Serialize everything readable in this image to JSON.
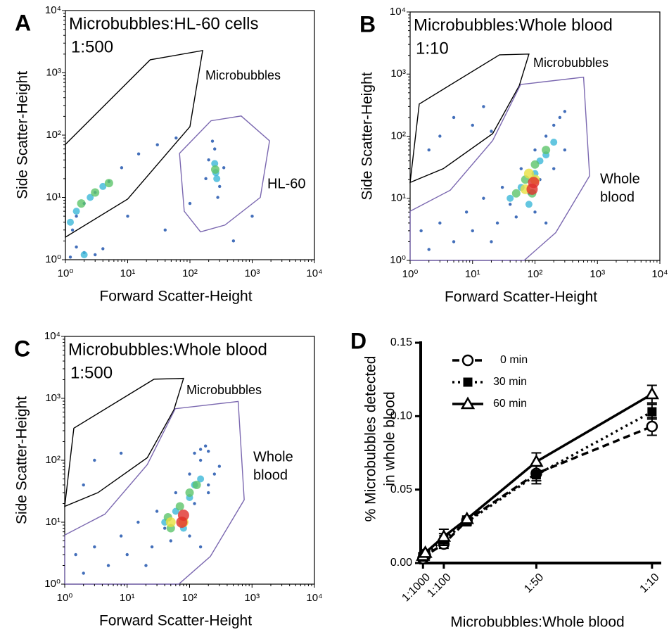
{
  "chart_data": [
    {
      "type": "density",
      "panel": "A",
      "title": "Microbubbles:HL-60 cells",
      "subtitle": "1:500",
      "xlabel": "Forward Scatter-Height",
      "ylabel": "Side Scatter-Height",
      "xscale": "log",
      "yscale": "log",
      "xlim": [
        1,
        10000
      ],
      "ylim": [
        1,
        10000
      ],
      "xticks": [
        {
          "value": 1,
          "label": "10⁰"
        },
        {
          "value": 10,
          "label": "10¹"
        },
        {
          "value": 100,
          "label": "10²"
        },
        {
          "value": 1000,
          "label": "10³"
        },
        {
          "value": 10000,
          "label": "10⁴"
        }
      ],
      "yticks": [
        {
          "value": 1,
          "label": "10⁰"
        },
        {
          "value": 10,
          "label": "10¹"
        },
        {
          "value": 100,
          "label": "10²"
        },
        {
          "value": 1000,
          "label": "10³"
        },
        {
          "value": 10000,
          "label": "10⁴"
        }
      ],
      "gates": [
        {
          "label": [
            "Microbubbles"
          ],
          "color": "#000000",
          "x": [
            1,
            23,
            160,
            100,
            10,
            1
          ],
          "y": [
            71,
            1620,
            2280,
            137,
            9.4,
            2.3
          ]
        },
        {
          "label": [
            "HL-60"
          ],
          "color": "#7b68b0",
          "x": [
            68,
            218,
            665,
            1900,
            1350,
            365,
            148,
            81
          ],
          "y": [
            51,
            170,
            203,
            81,
            10,
            3.6,
            2.8,
            6
          ]
        }
      ],
      "series": [
        {
          "color": "#2f5fb3",
          "x": [
            200,
            300,
            250,
            350,
            180,
            280,
            230,
            1.3,
            1.5,
            2,
            3,
            5,
            8,
            15,
            30,
            60,
            1.2,
            2,
            3,
            4,
            1.5,
            10,
            40,
            100,
            500,
            1000
          ],
          "y": [
            40,
            15,
            60,
            30,
            20,
            10,
            80,
            3,
            5,
            8,
            12,
            18,
            30,
            50,
            70,
            90,
            1.1,
            1.3,
            1.2,
            1.5,
            1.6,
            5,
            3,
            8,
            2,
            5
          ]
        },
        {
          "color": "#3cb8d8",
          "x": [
            260,
            250,
            270,
            1.5,
            2.5,
            4,
            1.2,
            2
          ],
          "y": [
            25,
            35,
            20,
            6,
            10,
            15,
            4,
            1.2
          ]
        },
        {
          "color": "#5cc46a",
          "x": [
            255,
            3,
            5,
            1.8
          ],
          "y": [
            28,
            12,
            17,
            8
          ]
        }
      ]
    },
    {
      "type": "density",
      "panel": "B",
      "title": "Microbubbles:Whole blood",
      "subtitle": "1:10",
      "xlabel": "Forward Scatter-Height",
      "ylabel": "Side Scatter-Height",
      "xscale": "log",
      "yscale": "log",
      "xlim": [
        1,
        10000
      ],
      "ylim": [
        1,
        10000
      ],
      "xticks": [
        {
          "value": 1,
          "label": "10⁰"
        },
        {
          "value": 10,
          "label": "10¹"
        },
        {
          "value": 100,
          "label": "10²"
        },
        {
          "value": 1000,
          "label": "10³"
        },
        {
          "value": 10000,
          "label": "10⁴"
        }
      ],
      "yticks": [
        {
          "value": 1,
          "label": "10⁰"
        },
        {
          "value": 10,
          "label": "10¹"
        },
        {
          "value": 100,
          "label": "10²"
        },
        {
          "value": 1000,
          "label": "10³"
        },
        {
          "value": 10000,
          "label": "10⁴"
        }
      ],
      "gates": [
        {
          "label": [
            "Microbubbles"
          ],
          "color": "#000000",
          "x": [
            1,
            1.4,
            27,
            80,
            56,
            21,
            3.4
          ],
          "y": [
            18,
            330,
            2040,
            2100,
            650,
            110,
            30
          ]
        },
        {
          "label": [
            "Whole",
            "blood"
          ],
          "color": "#7b68b0",
          "x": [
            1,
            4.4,
            21,
            59,
            600,
            750,
            215,
            67,
            1
          ],
          "y": [
            6.2,
            13.5,
            85,
            680,
            890,
            23,
            2.8,
            1,
            1
          ]
        }
      ],
      "series": [
        {
          "color": "#2f5fb3",
          "x": [
            2,
            5,
            10,
            20,
            50,
            3,
            8,
            15,
            30,
            60,
            100,
            150,
            200,
            250,
            40,
            80,
            120,
            200,
            300,
            1.5,
            300,
            100,
            25,
            150,
            3,
            10,
            20,
            5,
            2,
            15
          ],
          "y": [
            1.5,
            2,
            3,
            2,
            5,
            4,
            6,
            10,
            15,
            30,
            60,
            100,
            150,
            200,
            8,
            12,
            20,
            30,
            60,
            3,
            250,
            6,
            4,
            4,
            100,
            150,
            120,
            200,
            60,
            300
          ]
        },
        {
          "color": "#3cb8d8",
          "x": [
            40,
            60,
            100,
            150,
            200,
            80,
            120
          ],
          "y": [
            10,
            15,
            25,
            50,
            80,
            8,
            40
          ]
        },
        {
          "color": "#5cc46a",
          "x": [
            50,
            70,
            100,
            90,
            150
          ],
          "y": [
            12,
            20,
            35,
            12,
            60
          ]
        },
        {
          "color": "#e8e040",
          "x": [
            70,
            100,
            80
          ],
          "y": [
            14,
            20,
            25
          ]
        },
        {
          "color": "#e0302a",
          "x": [
            90,
            95
          ],
          "y": [
            14,
            18
          ]
        }
      ]
    },
    {
      "type": "density",
      "panel": "C",
      "title": "Microbubbles:Whole blood",
      "subtitle": "1:500",
      "xlabel": "Forward Scatter-Height",
      "ylabel": "Side Scatter-Height",
      "xscale": "log",
      "yscale": "log",
      "xlim": [
        1,
        10000
      ],
      "ylim": [
        1,
        10000
      ],
      "xticks": [
        {
          "value": 1,
          "label": "10⁰"
        },
        {
          "value": 10,
          "label": "10¹"
        },
        {
          "value": 100,
          "label": "10²"
        },
        {
          "value": 1000,
          "label": "10³"
        },
        {
          "value": 10000,
          "label": "10⁴"
        }
      ],
      "yticks": [
        {
          "value": 1,
          "label": "10⁰"
        },
        {
          "value": 10,
          "label": "10¹"
        },
        {
          "value": 100,
          "label": "10²"
        },
        {
          "value": 1000,
          "label": "10³"
        },
        {
          "value": 10000,
          "label": "10⁴"
        }
      ],
      "gates": [
        {
          "label": [
            "Microbubbles"
          ],
          "color": "#000000",
          "x": [
            1,
            1.4,
            27,
            80,
            56,
            21,
            3.4
          ],
          "y": [
            18,
            330,
            2040,
            2100,
            650,
            110,
            30
          ]
        },
        {
          "label": [
            "Whole",
            "blood"
          ],
          "color": "#7b68b0",
          "x": [
            1,
            4.4,
            21,
            59,
            600,
            750,
            215,
            67,
            1
          ],
          "y": [
            6.2,
            13.5,
            85,
            680,
            890,
            23,
            2.8,
            1,
            1
          ]
        }
      ],
      "series": [
        {
          "color": "#2f5fb3",
          "x": [
            2,
            5,
            10,
            20,
            50,
            3,
            8,
            15,
            30,
            60,
            100,
            150,
            200,
            250,
            40,
            120,
            200,
            300,
            1.5,
            100,
            25,
            150,
            150,
            120,
            180,
            200,
            3,
            8,
            2
          ],
          "y": [
            1.5,
            2,
            3,
            2,
            5,
            4,
            6,
            10,
            15,
            30,
            60,
            100,
            30,
            60,
            8,
            20,
            40,
            80,
            3,
            6,
            4,
            4,
            150,
            130,
            170,
            140,
            100,
            130,
            40
          ]
        },
        {
          "color": "#3cb8d8",
          "x": [
            40,
            60,
            100,
            150,
            80,
            120
          ],
          "y": [
            10,
            15,
            25,
            50,
            8,
            40
          ]
        },
        {
          "color": "#5cc46a",
          "x": [
            45,
            70,
            100,
            50,
            130
          ],
          "y": [
            12,
            18,
            30,
            8,
            40
          ]
        },
        {
          "color": "#e8e040",
          "x": [
            50,
            80
          ],
          "y": [
            10,
            10
          ]
        },
        {
          "color": "#e0302a",
          "x": [
            75,
            80
          ],
          "y": [
            10,
            13
          ]
        }
      ]
    },
    {
      "type": "line",
      "panel": "D",
      "xlabel": "Microbubbles:Whole blood",
      "ylabel": [
        "% Microbubbles detected",
        "in whole blood"
      ],
      "x": [
        0.001,
        0.002,
        0.01,
        0.02,
        0.05,
        0.1
      ],
      "xlim": [
        0,
        0.104
      ],
      "ylim": [
        0,
        0.15
      ],
      "xticks": [
        {
          "value": 0.001,
          "label": "1:1000"
        },
        {
          "value": 0.01,
          "label": "1:100"
        },
        {
          "value": 0.05,
          "label": "1:50"
        },
        {
          "value": 0.1,
          "label": "1:10"
        }
      ],
      "yticks": [
        {
          "value": 0,
          "label": "0.00"
        },
        0.05,
        {
          "value": 0.1,
          "label": "0.10"
        },
        0.15
      ],
      "legend": "upper left",
      "series": [
        {
          "name": "0 min",
          "color": "#000000",
          "marker": "circle-open",
          "linestyle": "dashed",
          "values": [
            0.003,
            0.005,
            0.013,
            0.029,
            0.061,
            0.093
          ],
          "errors": [
            0.002,
            0.002,
            0.003,
            0.002,
            0.005,
            0.006
          ]
        },
        {
          "name": "30 min",
          "color": "#000000",
          "marker": "square",
          "linestyle": "dotted",
          "values": [
            0.004,
            0.006,
            0.016,
            0.028,
            0.06,
            0.103
          ],
          "errors": [
            0.002,
            0.002,
            0.004,
            0.002,
            0.006,
            0.005
          ]
        },
        {
          "name": "60 min",
          "color": "#000000",
          "marker": "triangle-open",
          "linestyle": "solid",
          "values": [
            0.005,
            0.007,
            0.018,
            0.03,
            0.069,
            0.115
          ],
          "errors": [
            0.002,
            0.002,
            0.005,
            0.002,
            0.006,
            0.006
          ]
        }
      ]
    }
  ]
}
